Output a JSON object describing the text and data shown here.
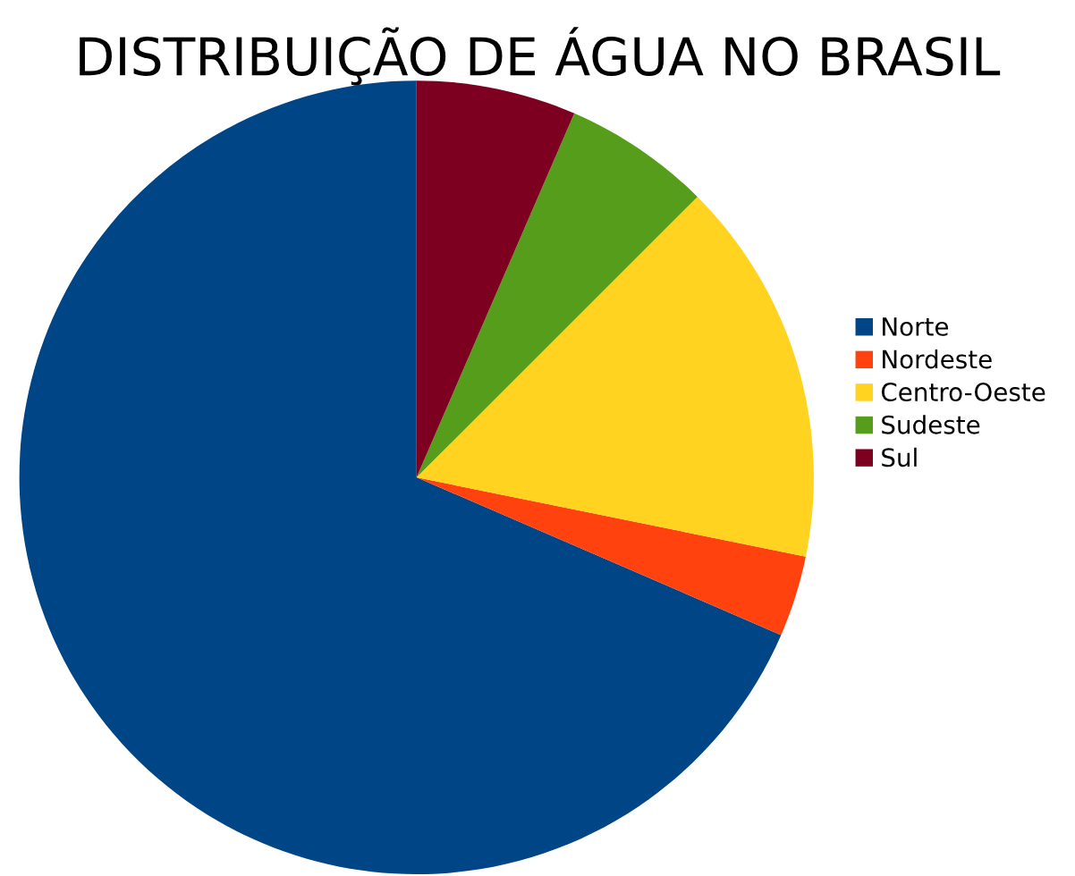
{
  "chart_data": {
    "type": "pie",
    "title": "DISTRIBUIÇÃO DE ÁGUA NO BRASIL",
    "categories": [
      "Norte",
      "Nordeste",
      "Centro-Oeste",
      "Sudeste",
      "Sul"
    ],
    "values": [
      68.5,
      3.3,
      15.7,
      6.0,
      6.5
    ],
    "colors": [
      "#004586",
      "#ff420e",
      "#ffd320",
      "#579d1c",
      "#7e0021"
    ],
    "legend": "right"
  }
}
